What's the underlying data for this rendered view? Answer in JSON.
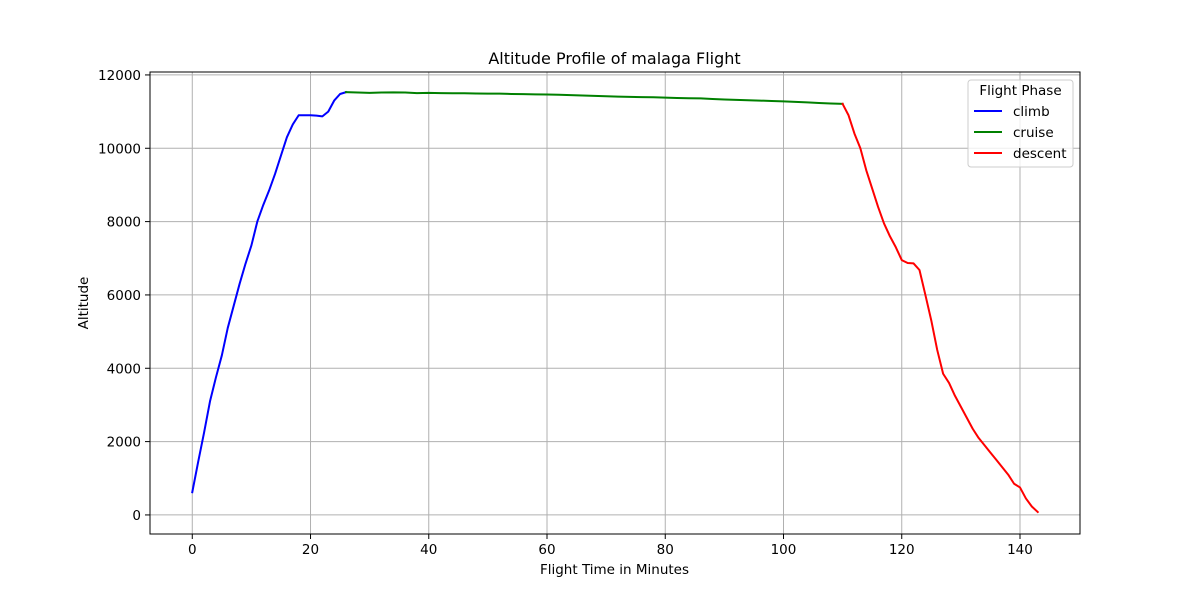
{
  "chart_data": {
    "type": "line",
    "title": "Altitude Profile of malaga Flight",
    "xlabel": "Flight Time in Minutes",
    "ylabel": "Altitude",
    "xlim": [
      -7.15,
      150.15
    ],
    "ylim": [
      -520,
      12080
    ],
    "xticks": [
      0,
      20,
      40,
      60,
      80,
      100,
      120,
      140
    ],
    "yticks": [
      0,
      2000,
      4000,
      6000,
      8000,
      10000,
      12000
    ],
    "grid": true,
    "legend": {
      "title": "Flight Phase",
      "placement": "top-right"
    },
    "series": [
      {
        "name": "climb",
        "color": "#0000ff",
        "x": [
          0,
          1,
          2,
          3,
          4,
          5,
          6,
          7,
          8,
          9,
          10,
          11,
          12,
          13,
          14,
          15,
          16,
          17,
          18,
          19,
          20,
          21,
          22,
          23,
          24,
          25,
          26
        ],
        "y": [
          620,
          1450,
          2250,
          3100,
          3750,
          4350,
          5100,
          5700,
          6300,
          6850,
          7350,
          8000,
          8450,
          8850,
          9300,
          9800,
          10300,
          10650,
          10900,
          10900,
          10900,
          10890,
          10870,
          11000,
          11300,
          11480,
          11530
        ]
      },
      {
        "name": "cruise",
        "color": "#008000",
        "x": [
          26,
          28,
          30,
          32,
          34,
          36,
          38,
          40,
          42,
          44,
          46,
          48,
          50,
          52,
          54,
          56,
          58,
          60,
          62,
          64,
          66,
          68,
          70,
          72,
          74,
          76,
          78,
          80,
          82,
          84,
          86,
          88,
          90,
          92,
          94,
          96,
          98,
          100,
          102,
          104,
          106,
          108,
          110
        ],
        "y": [
          11530,
          11520,
          11510,
          11520,
          11525,
          11520,
          11505,
          11510,
          11505,
          11500,
          11500,
          11495,
          11490,
          11490,
          11480,
          11475,
          11470,
          11465,
          11460,
          11450,
          11440,
          11430,
          11420,
          11410,
          11400,
          11395,
          11390,
          11380,
          11370,
          11365,
          11360,
          11345,
          11330,
          11320,
          11310,
          11300,
          11290,
          11280,
          11265,
          11250,
          11235,
          11220,
          11210
        ]
      },
      {
        "name": "descent",
        "color": "#ff0000",
        "x": [
          110,
          111,
          112,
          113,
          114,
          115,
          116,
          117,
          118,
          119,
          120,
          121,
          122,
          123,
          124,
          125,
          126,
          127,
          128,
          129,
          130,
          131,
          132,
          133,
          134,
          135,
          136,
          137,
          138,
          139,
          140,
          141,
          142,
          143
        ],
        "y": [
          11210,
          10900,
          10400,
          10000,
          9400,
          8900,
          8400,
          7950,
          7600,
          7300,
          6950,
          6870,
          6860,
          6680,
          6000,
          5300,
          4500,
          3850,
          3600,
          3250,
          2950,
          2650,
          2350,
          2100,
          1900,
          1700,
          1500,
          1300,
          1100,
          850,
          750,
          450,
          230,
          80
        ]
      }
    ]
  }
}
